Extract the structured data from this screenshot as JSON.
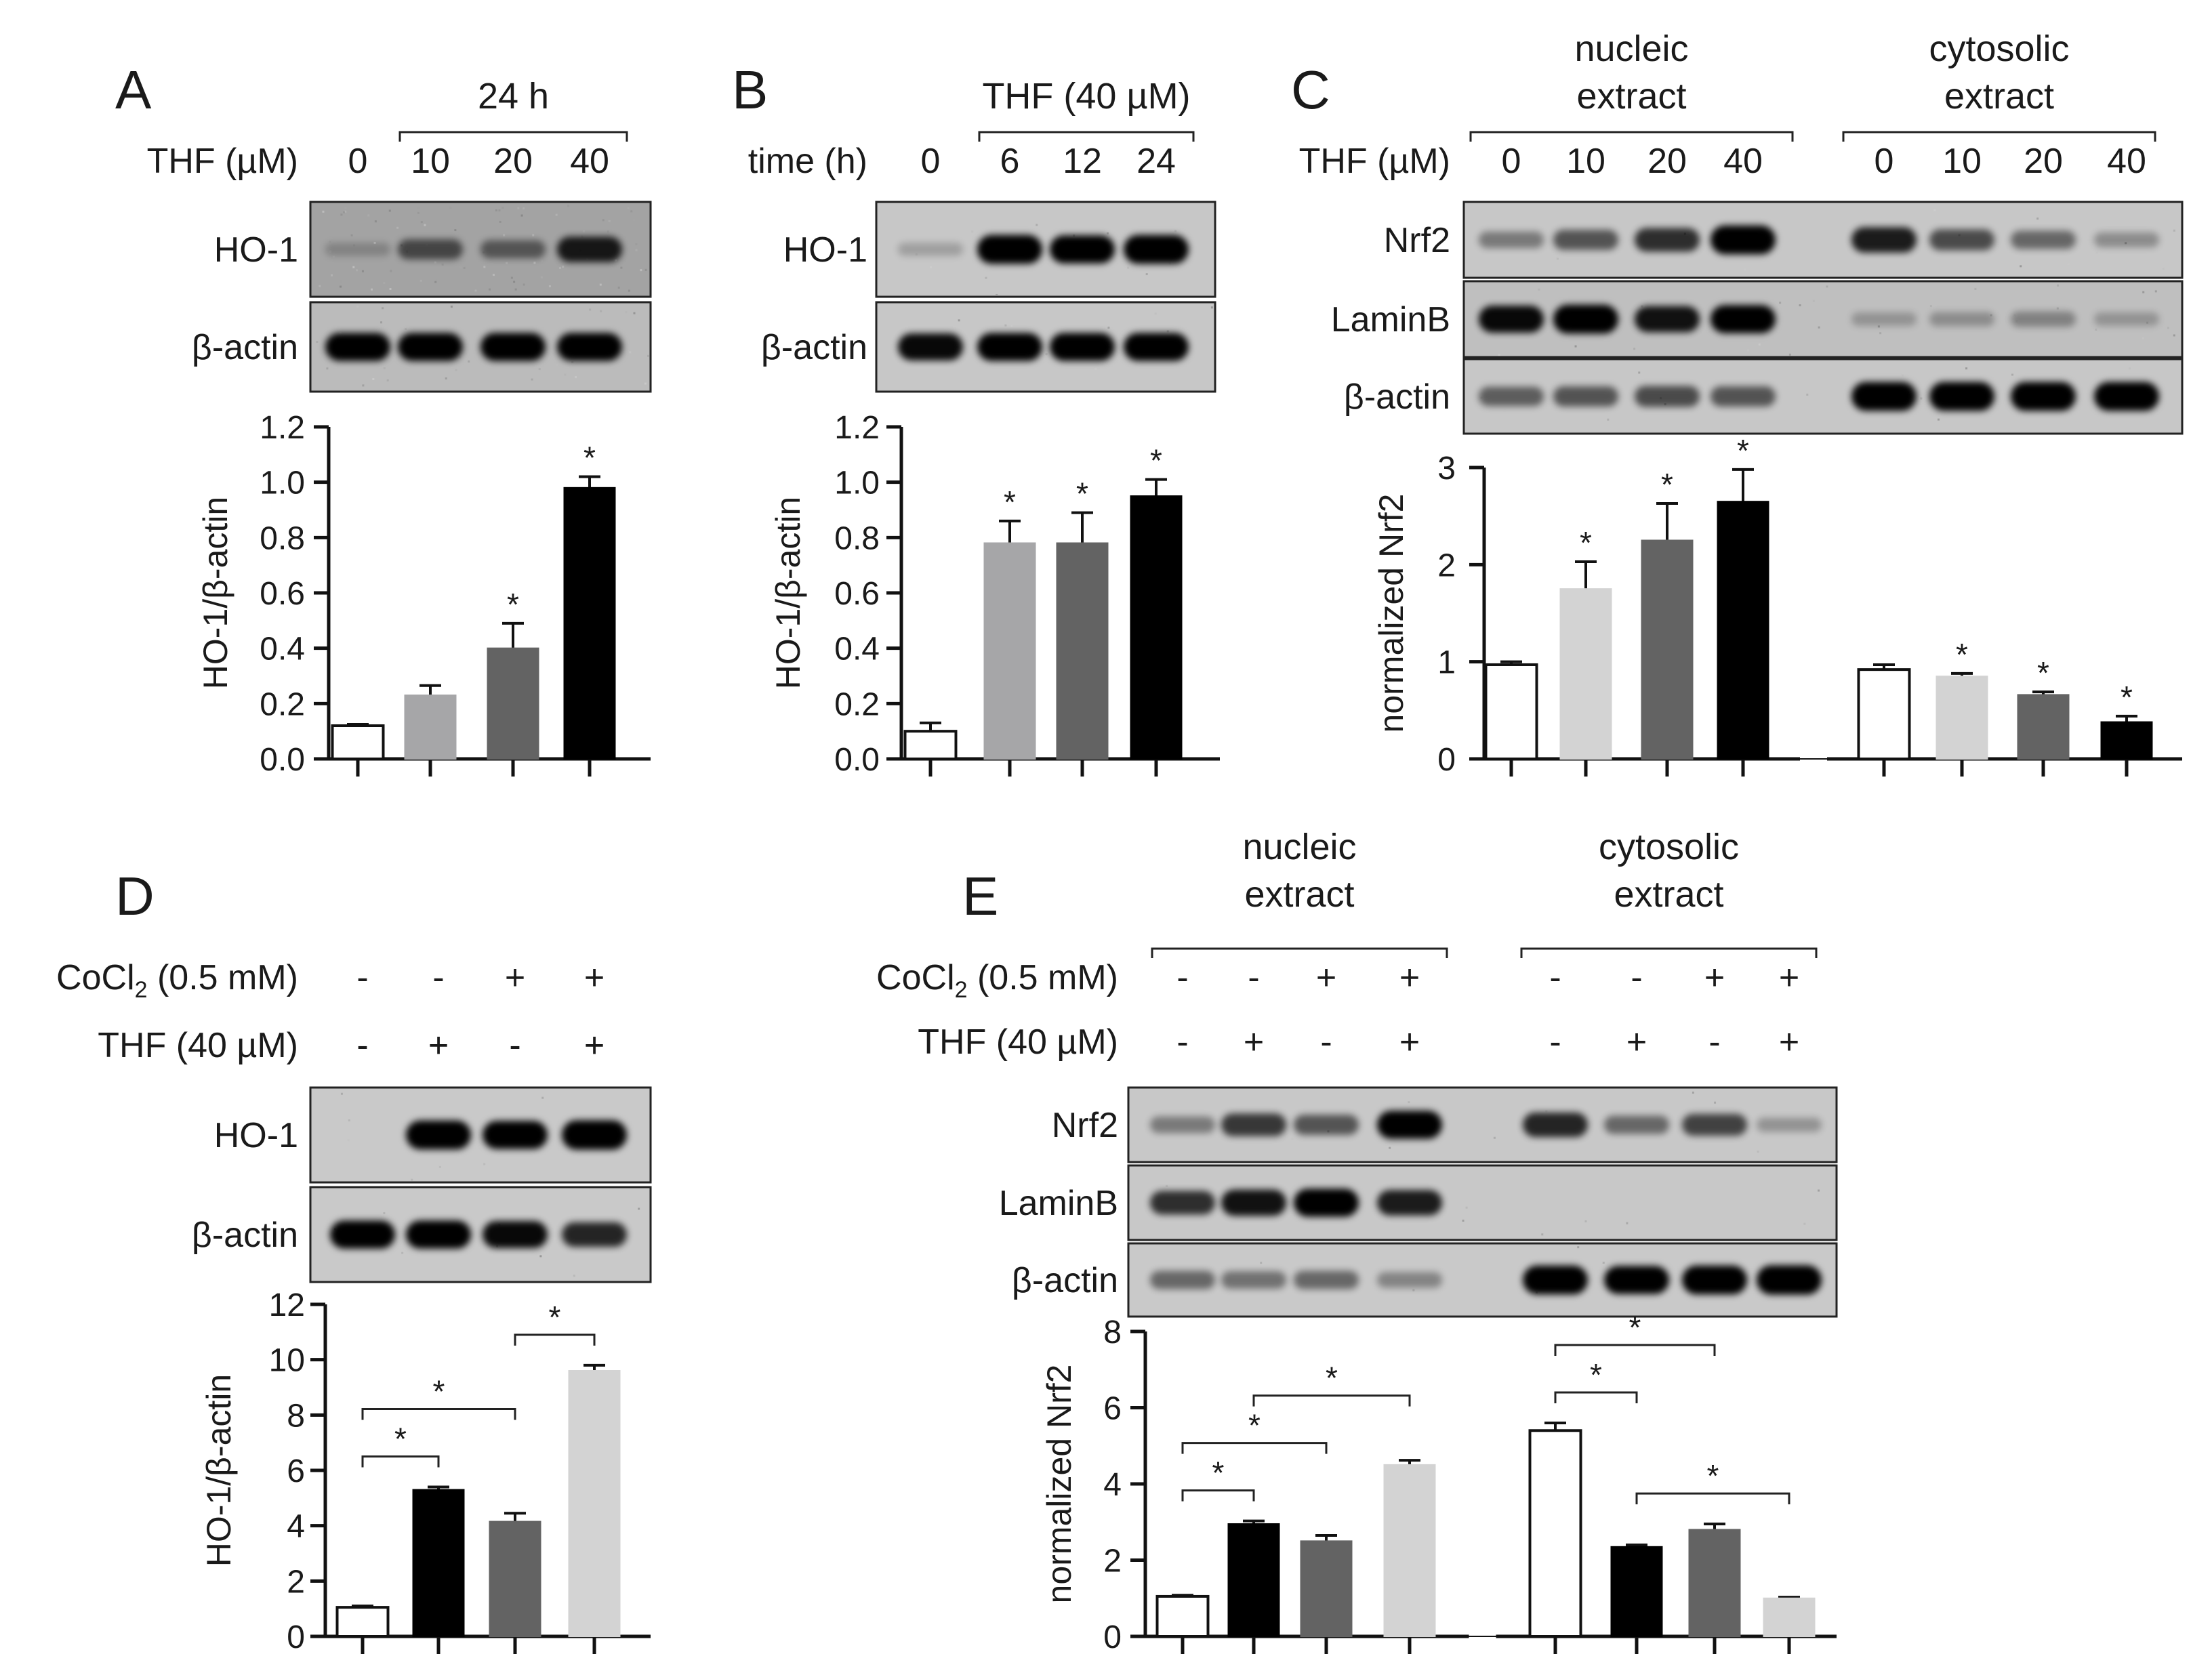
{
  "figure": {
    "panels": [
      {
        "id": "A",
        "letter": "A",
        "header_group": {
          "label": "24 h",
          "from": 1,
          "to": 3
        },
        "condition_rows": [
          {
            "label": "THF (µM)",
            "values": [
              "0",
              "10",
              "20",
              "40"
            ]
          }
        ],
        "blots": [
          {
            "label": "HO-1",
            "bands": [
              0.05,
              0.45,
              0.35,
              0.75
            ],
            "noise": 0.35
          },
          {
            "label": "β-actin",
            "bands": [
              0.9,
              0.9,
              0.9,
              0.9
            ],
            "noise": 0.15
          }
        ]
      },
      {
        "id": "B",
        "letter": "B",
        "header_group": {
          "label": "THF (40 µM)",
          "from": 1,
          "to": 3
        },
        "condition_rows": [
          {
            "label": "time (h)",
            "values": [
              "0",
              "6",
              "12",
              "24"
            ]
          }
        ],
        "blots": [
          {
            "label": "HO-1",
            "bands": [
              0.05,
              0.95,
              0.9,
              0.95
            ],
            "noise": 0.05
          },
          {
            "label": "β-actin",
            "bands": [
              0.85,
              0.9,
              0.9,
              0.9
            ],
            "noise": 0.05
          }
        ]
      },
      {
        "id": "C",
        "letter": "C",
        "group_headers": [
          {
            "line1": "nucleic",
            "line2": "extract"
          },
          {
            "line1": "cytosolic",
            "line2": "extract"
          }
        ],
        "condition_rows": [
          {
            "label": "THF (µM)",
            "values": [
              "0",
              "10",
              "20",
              "40",
              "0",
              "10",
              "20",
              "40"
            ]
          }
        ],
        "blots": [
          {
            "label": "Nrf2",
            "bands": [
              0.25,
              0.45,
              0.65,
              0.95,
              0.75,
              0.5,
              0.35,
              0.15
            ],
            "noise": 0.05
          },
          {
            "label": "LaminB",
            "bands": [
              0.85,
              0.95,
              0.8,
              0.9,
              0.08,
              0.12,
              0.18,
              0.08
            ],
            "noise": 0.12
          },
          {
            "label": "β-actin",
            "bands": [
              0.4,
              0.45,
              0.5,
              0.45,
              0.95,
              0.95,
              0.95,
              0.95
            ],
            "noise": 0.05
          }
        ]
      },
      {
        "id": "D",
        "letter": "D",
        "condition_rows": [
          {
            "label": "CoCl2 (0.5 mM)",
            "label_main": "CoCl",
            "label_sub": "2",
            "label_tail": " (0.5 mM)",
            "values": [
              "-",
              "-",
              "+",
              "+"
            ]
          },
          {
            "label": "THF (40 µM)",
            "values": [
              "-",
              "+",
              "-",
              "+"
            ]
          }
        ],
        "blots": [
          {
            "label": "HO-1",
            "bands": [
              0.0,
              0.95,
              0.9,
              0.98
            ],
            "noise": 0.03
          },
          {
            "label": "β-actin",
            "bands": [
              0.9,
              0.9,
              0.85,
              0.7
            ],
            "noise": 0.03
          }
        ]
      },
      {
        "id": "E",
        "letter": "E",
        "group_headers": [
          {
            "line1": "nucleic",
            "line2": "extract"
          },
          {
            "line1": "cytosolic",
            "line2": "extract"
          }
        ],
        "condition_rows": [
          {
            "label": "CoCl2 (0.5 mM)",
            "label_main": "CoCl",
            "label_sub": "2",
            "label_tail": " (0.5 mM)",
            "values": [
              "-",
              "-",
              "+",
              "+",
              "-",
              "-",
              "+",
              "+"
            ]
          },
          {
            "label": "THF (40 µM)",
            "values": [
              "-",
              "+",
              "-",
              "+",
              "-",
              "+",
              "-",
              "+"
            ]
          }
        ],
        "blots": [
          {
            "label": "Nrf2",
            "bands": [
              0.25,
              0.6,
              0.45,
              0.9,
              0.7,
              0.35,
              0.55,
              0.12
            ],
            "noise": 0.04
          },
          {
            "label": "LaminB",
            "bands": [
              0.65,
              0.8,
              0.9,
              0.75,
              0.0,
              0.0,
              0.0,
              0.0
            ],
            "noise": 0.04
          },
          {
            "label": "β-actin",
            "bands": [
              0.35,
              0.3,
              0.35,
              0.2,
              0.95,
              0.9,
              0.95,
              0.98
            ],
            "noise": 0.03
          }
        ]
      }
    ]
  },
  "chart_data": [
    {
      "panel": "A",
      "type": "bar",
      "ylabel": "HO-1/β-actin",
      "ylim": [
        0,
        1.2
      ],
      "ticks": [
        "0.0",
        "0.2",
        "0.4",
        "0.6",
        "0.8",
        "1.0",
        "1.2"
      ],
      "values": [
        0.12,
        0.23,
        0.4,
        0.98
      ],
      "errors": [
        0.005,
        0.035,
        0.09,
        0.04
      ],
      "bar_colors": [
        "#ffffff",
        "#a6a6a8",
        "#636363",
        "#000000"
      ],
      "significance": [
        false,
        false,
        true,
        true
      ],
      "star": "*"
    },
    {
      "panel": "B",
      "type": "bar",
      "ylabel": "HO-1/β-actin",
      "ylim": [
        0,
        1.2
      ],
      "ticks": [
        "0.0",
        "0.2",
        "0.4",
        "0.6",
        "0.8",
        "1.0",
        "1.2"
      ],
      "values": [
        0.1,
        0.78,
        0.78,
        0.95
      ],
      "errors": [
        0.03,
        0.08,
        0.11,
        0.06
      ],
      "bar_colors": [
        "#ffffff",
        "#a6a6a8",
        "#636363",
        "#000000"
      ],
      "significance": [
        false,
        true,
        true,
        true
      ],
      "star": "*"
    },
    {
      "panel": "C",
      "type": "bar",
      "ylabel": "normalized Nrf2",
      "ylim": [
        0,
        3
      ],
      "ticks": [
        "0",
        "1",
        "2",
        "3"
      ],
      "values": [
        0.97,
        1.75,
        2.25,
        2.65,
        0.92,
        0.85,
        0.66,
        0.38
      ],
      "errors": [
        0.03,
        0.28,
        0.38,
        0.33,
        0.05,
        0.03,
        0.03,
        0.06
      ],
      "bar_colors": [
        "#ffffff",
        "#d3d3d3",
        "#636363",
        "#000000",
        "#ffffff",
        "#d3d3d3",
        "#636363",
        "#000000"
      ],
      "significance": [
        false,
        true,
        true,
        true,
        false,
        true,
        true,
        true
      ],
      "star": "*"
    },
    {
      "panel": "D",
      "type": "bar",
      "ylabel": "HO-1/β-actin",
      "ylim": [
        0,
        12
      ],
      "ticks": [
        "0",
        "2",
        "4",
        "6",
        "8",
        "10",
        "12"
      ],
      "values": [
        1.05,
        5.3,
        4.15,
        9.6
      ],
      "errors": [
        0.05,
        0.1,
        0.3,
        0.2
      ],
      "bar_colors": [
        "#ffffff",
        "#000000",
        "#636363",
        "#d3d3d3"
      ],
      "comparisons": [
        [
          0,
          1
        ],
        [
          0,
          2
        ],
        [
          2,
          3
        ]
      ],
      "star": "*"
    },
    {
      "panel": "E",
      "type": "bar",
      "ylabel": "normalized Nrf2",
      "ylim": [
        0,
        8
      ],
      "ticks": [
        "0",
        "2",
        "4",
        "6",
        "8"
      ],
      "values": [
        1.05,
        2.95,
        2.5,
        4.5,
        5.4,
        2.35,
        2.8,
        1.0
      ],
      "errors": [
        0.03,
        0.08,
        0.15,
        0.12,
        0.2,
        0.05,
        0.15,
        0.03
      ],
      "bar_colors": [
        "#ffffff",
        "#000000",
        "#636363",
        "#d3d3d3",
        "#ffffff",
        "#000000",
        "#636363",
        "#d3d3d3"
      ],
      "comparisons": [
        [
          0,
          1
        ],
        [
          0,
          2
        ],
        [
          1,
          3
        ],
        [
          4,
          5
        ],
        [
          4,
          6
        ],
        [
          5,
          7
        ]
      ],
      "star": "*"
    }
  ]
}
